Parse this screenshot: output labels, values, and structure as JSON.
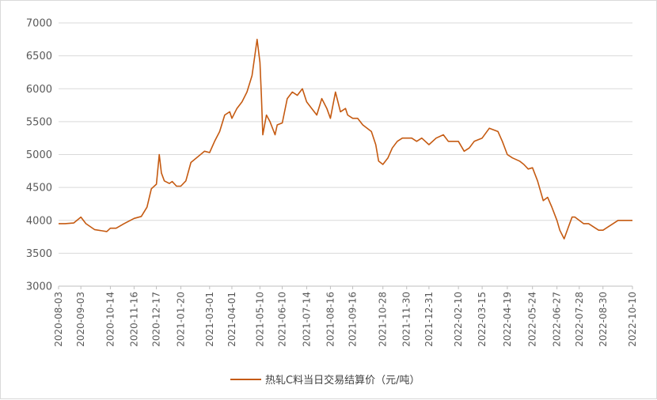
{
  "chart_data": {
    "type": "line",
    "title": "",
    "xlabel": "",
    "ylabel": "",
    "ylim": [
      3000,
      7000
    ],
    "y_ticks": [
      3000,
      3500,
      4000,
      4500,
      5000,
      5500,
      6000,
      6500,
      7000
    ],
    "grid": "horizontal",
    "legend_position": "bottom",
    "line_color": "#C55A11",
    "x_ticks": [
      "2020-08-03",
      "2020-09-03",
      "2020-10-14",
      "2020-11-16",
      "2020-12-17",
      "2021-01-20",
      "2021-03-01",
      "2021-04-01",
      "2021-05-10",
      "2021-06-10",
      "2021-07-14",
      "2021-08-16",
      "2021-09-16",
      "2021-10-28",
      "2021-11-30",
      "2021-12-31",
      "2022-02-10",
      "2022-03-15",
      "2022-04-19",
      "2022-05-24",
      "2022-06-27",
      "2022-07-28",
      "2022-08-30",
      "2022-10-10"
    ],
    "series": [
      {
        "name": "热轧C料当日交易结算价（元/吨）",
        "x": [
          "2020-08-03",
          "2020-08-12",
          "2020-08-24",
          "2020-09-03",
          "2020-09-10",
          "2020-09-22",
          "2020-10-09",
          "2020-10-14",
          "2020-10-22",
          "2020-11-02",
          "2020-11-16",
          "2020-11-26",
          "2020-12-04",
          "2020-12-10",
          "2020-12-17",
          "2020-12-21",
          "2020-12-24",
          "2020-12-28",
          "2021-01-04",
          "2021-01-08",
          "2021-01-14",
          "2021-01-20",
          "2021-01-27",
          "2021-02-03",
          "2021-02-22",
          "2021-03-01",
          "2021-03-08",
          "2021-03-15",
          "2021-03-22",
          "2021-03-29",
          "2021-04-01",
          "2021-04-08",
          "2021-04-15",
          "2021-04-22",
          "2021-04-29",
          "2021-05-06",
          "2021-05-10",
          "2021-05-12",
          "2021-05-14",
          "2021-05-19",
          "2021-05-24",
          "2021-05-31",
          "2021-06-03",
          "2021-06-10",
          "2021-06-17",
          "2021-06-24",
          "2021-07-01",
          "2021-07-08",
          "2021-07-14",
          "2021-07-21",
          "2021-07-28",
          "2021-08-04",
          "2021-08-11",
          "2021-08-16",
          "2021-08-23",
          "2021-08-30",
          "2021-09-06",
          "2021-09-09",
          "2021-09-16",
          "2021-09-23",
          "2021-09-30",
          "2021-10-12",
          "2021-10-18",
          "2021-10-22",
          "2021-10-28",
          "2021-11-04",
          "2021-11-10",
          "2021-11-17",
          "2021-11-24",
          "2021-11-30",
          "2021-12-07",
          "2021-12-14",
          "2021-12-21",
          "2021-12-31",
          "2022-01-10",
          "2022-01-20",
          "2022-01-27",
          "2022-02-10",
          "2022-02-18",
          "2022-02-25",
          "2022-03-04",
          "2022-03-15",
          "2022-03-25",
          "2022-04-06",
          "2022-04-12",
          "2022-04-19",
          "2022-04-26",
          "2022-05-06",
          "2022-05-12",
          "2022-05-18",
          "2022-05-24",
          "2022-05-31",
          "2022-06-08",
          "2022-06-14",
          "2022-06-20",
          "2022-06-27",
          "2022-07-01",
          "2022-07-07",
          "2022-07-13",
          "2022-07-18",
          "2022-07-22",
          "2022-07-28",
          "2022-08-03",
          "2022-08-10",
          "2022-08-17",
          "2022-08-24",
          "2022-08-30",
          "2022-09-06",
          "2022-09-13",
          "2022-09-20",
          "2022-09-27",
          "2022-10-10"
        ],
        "values": [
          3950,
          3950,
          3960,
          4050,
          3950,
          3860,
          3830,
          3880,
          3880,
          3950,
          4030,
          4060,
          4200,
          4480,
          4550,
          5000,
          4720,
          4600,
          4560,
          4590,
          4520,
          4520,
          4600,
          4880,
          5050,
          5030,
          5200,
          5350,
          5600,
          5650,
          5550,
          5700,
          5800,
          5950,
          6200,
          6750,
          6400,
          5900,
          5300,
          5600,
          5500,
          5300,
          5450,
          5480,
          5850,
          5950,
          5900,
          6000,
          5800,
          5700,
          5600,
          5850,
          5700,
          5550,
          5950,
          5650,
          5700,
          5600,
          5550,
          5550,
          5450,
          5350,
          5150,
          4900,
          4850,
          4950,
          5100,
          5200,
          5250,
          5250,
          5250,
          5200,
          5250,
          5150,
          5250,
          5300,
          5200,
          5200,
          5050,
          5100,
          5200,
          5250,
          5400,
          5350,
          5200,
          5000,
          4950,
          4900,
          4850,
          4780,
          4800,
          4600,
          4300,
          4350,
          4200,
          4000,
          3850,
          3720,
          3900,
          4050,
          4050,
          4000,
          3950,
          3950,
          3900,
          3850,
          3850,
          3900,
          3950,
          4000,
          4000,
          4000
        ]
      }
    ]
  }
}
